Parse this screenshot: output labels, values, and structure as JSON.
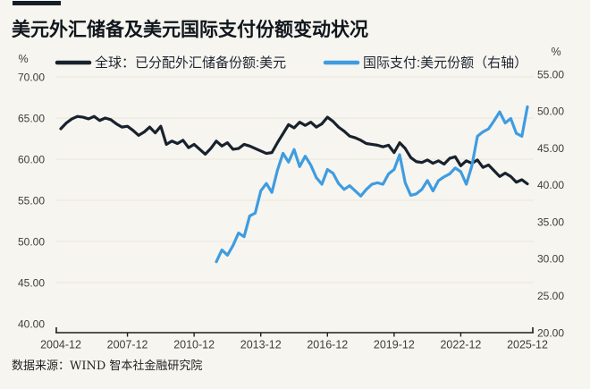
{
  "title": "美元外汇储备及美元国际支付份额变动状况",
  "source_note": "数据来源：WIND 智本社金融研究院",
  "colors": {
    "background": "#f7f5ef",
    "accent_bar": "#141e29",
    "title_text": "#10161d",
    "reserve_line": "#18222e",
    "payment_line": "#3f9ce0",
    "grid_line": "#e8e5dd",
    "axis_line": "#1f1f1f",
    "tick_text": "#3d3d3d"
  },
  "legend": {
    "items": [
      {
        "label": "全球：已分配外汇储备份额:美元",
        "color": "#18222e"
      },
      {
        "label": "国际支付:美元份额（右轴）",
        "color": "#3f9ce0"
      }
    ]
  },
  "left_axis": {
    "unit": "%",
    "min": 40,
    "max": 70,
    "tick_labels": [
      "70.00",
      "65.00",
      "60.00",
      "55.00",
      "50.00",
      "45.00",
      "40.00"
    ]
  },
  "right_axis": {
    "unit": "%",
    "min": 20,
    "max": 55,
    "tick_labels": [
      "55.00",
      "50.00",
      "45.00",
      "40.00",
      "35.00",
      "30.00",
      "25.00",
      "20.00"
    ]
  },
  "x_axis": {
    "tick_labels": [
      "2004-12",
      "2007-12",
      "2010-12",
      "2013-12",
      "2016-12",
      "2019-12",
      "2022-12",
      "2025-12"
    ]
  },
  "chart_data": {
    "type": "line",
    "title": "美元外汇储备及美元国际支付份额变动状况",
    "x_tick_labels": [
      "2004-12",
      "2007-12",
      "2010-12",
      "2013-12",
      "2016-12",
      "2019-12",
      "2022-12",
      "2025-12"
    ],
    "x_range": [
      "2004-12",
      "2025-12"
    ],
    "grid": true,
    "legend_position": "top",
    "series": [
      {
        "name": "全球：已分配外汇储备份额:美元",
        "axis": "left",
        "unit": "%",
        "axis_range": [
          40,
          70
        ],
        "start": "2004-12",
        "freq": "quarterly",
        "values": [
          63.7,
          64.4,
          64.9,
          65.2,
          65.1,
          64.9,
          65.2,
          64.7,
          65.0,
          64.8,
          64.3,
          63.9,
          64.0,
          63.5,
          62.9,
          63.3,
          63.9,
          63.2,
          64.0,
          61.8,
          62.2,
          61.9,
          62.3,
          61.4,
          61.8,
          61.2,
          60.6,
          61.3,
          62.2,
          61.6,
          62.0,
          61.2,
          61.3,
          61.8,
          61.6,
          61.3,
          61.0,
          60.7,
          60.8,
          62.0,
          63.1,
          64.2,
          63.8,
          64.5,
          64.1,
          64.5,
          63.9,
          64.3,
          65.1,
          64.6,
          63.9,
          63.4,
          62.8,
          62.6,
          62.3,
          61.9,
          61.8,
          61.7,
          61.5,
          61.7,
          60.8,
          62.0,
          61.3,
          60.2,
          59.7,
          59.6,
          59.9,
          59.5,
          59.8,
          59.4,
          60.1,
          60.3,
          59.2,
          59.8,
          59.5,
          59.9,
          59.0,
          59.3,
          58.6,
          57.9,
          58.3,
          57.9,
          57.2,
          57.5,
          57.0
        ]
      },
      {
        "name": "国际支付:美元份额（右轴）",
        "axis": "right",
        "unit": "%",
        "axis_range": [
          20,
          55
        ],
        "start": "2011-12",
        "freq": "quarterly",
        "values": [
          29.6,
          31.2,
          30.5,
          31.8,
          33.5,
          33.0,
          35.8,
          36.2,
          39.2,
          40.2,
          39.0,
          42.0,
          44.3,
          43.1,
          44.8,
          42.5,
          43.9,
          42.7,
          41.0,
          40.1,
          42.1,
          41.6,
          40.2,
          39.4,
          39.9,
          39.2,
          38.5,
          39.4,
          40.1,
          40.3,
          40.1,
          41.5,
          42.1,
          44.1,
          40.3,
          38.6,
          38.8,
          39.4,
          40.6,
          39.2,
          40.6,
          41.1,
          41.5,
          42.3,
          41.8,
          40.1,
          42.6,
          46.6,
          47.2,
          47.6,
          48.7,
          49.9,
          48.4,
          49.0,
          47.0,
          46.6,
          50.6
        ]
      }
    ]
  }
}
